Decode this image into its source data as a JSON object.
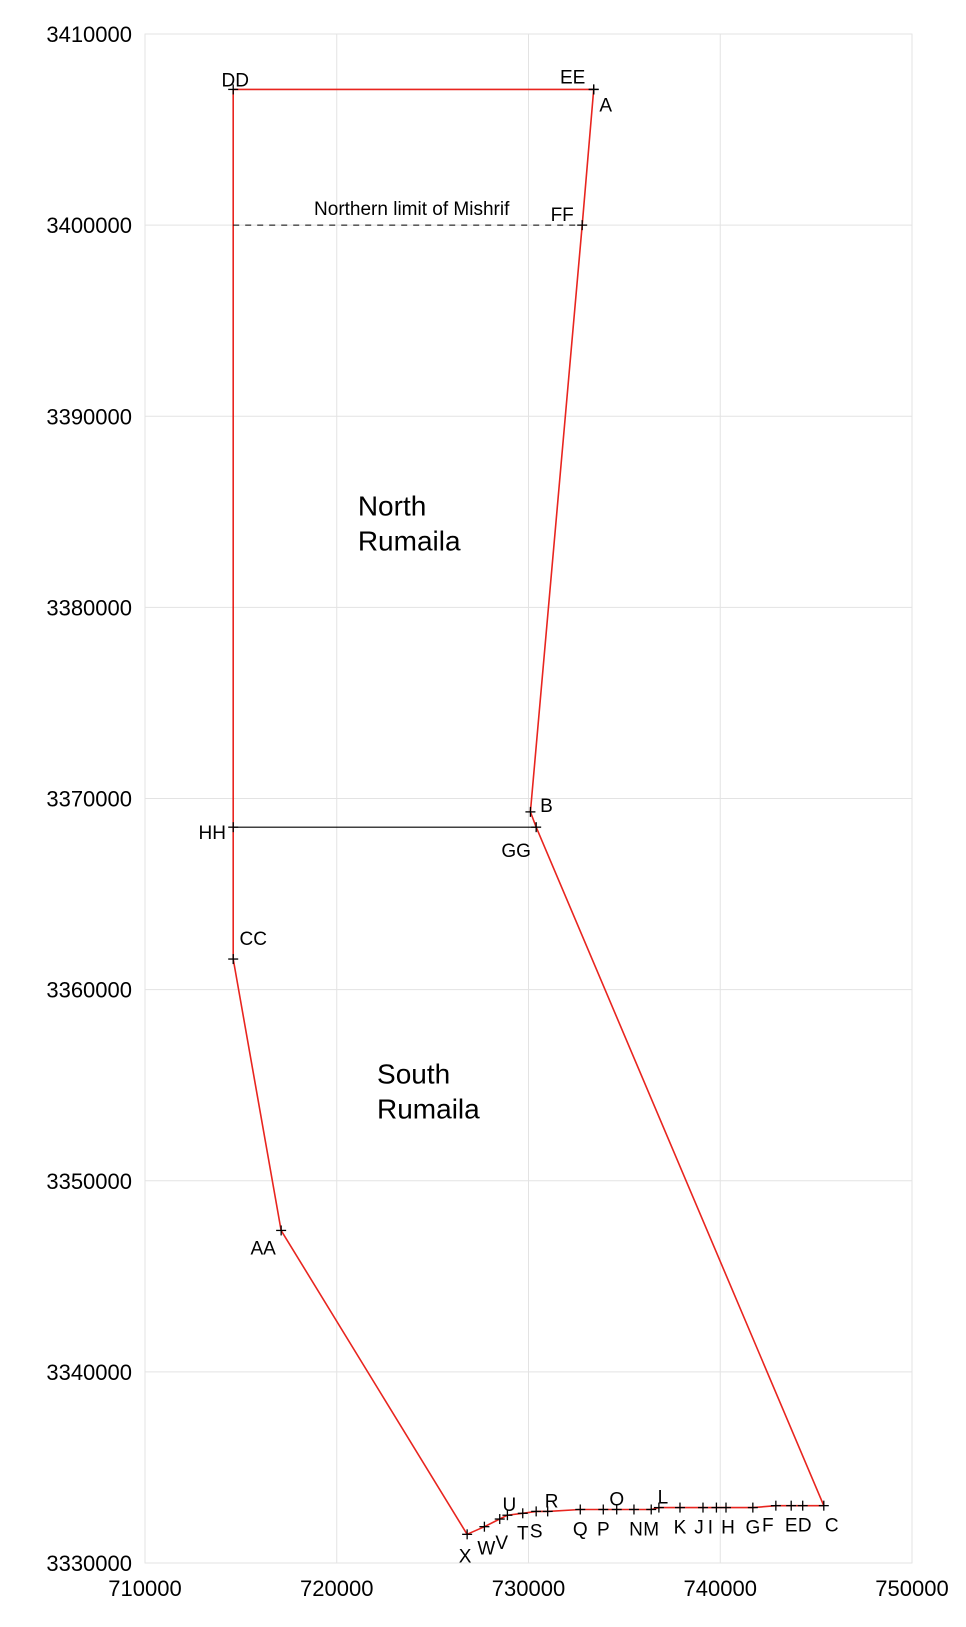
{
  "chart_data": {
    "type": "line",
    "title": "",
    "xlabel": "",
    "ylabel": "",
    "xlim": [
      710000,
      750000
    ],
    "ylim": [
      3330000,
      3410000
    ],
    "grid": true,
    "x_ticks": [
      "710000",
      "720000",
      "730000",
      "740000",
      "750000"
    ],
    "y_ticks": [
      "3330000",
      "3340000",
      "3350000",
      "3360000",
      "3370000",
      "3380000",
      "3390000",
      "3400000",
      "3410000"
    ],
    "boundary_color": "#e8251f",
    "divider_color": "#000000",
    "boundary": [
      {
        "label": "A",
        "x": 733400,
        "y": 3407100
      },
      {
        "label": "FF",
        "x": 732800,
        "y": 3400000
      },
      {
        "label": "B",
        "x": 730100,
        "y": 3369300
      },
      {
        "label": "GG",
        "x": 730400,
        "y": 3368500
      },
      {
        "label": "C",
        "x": 745400,
        "y": 3333000
      },
      {
        "label": "D",
        "x": 744300,
        "y": 3333000
      },
      {
        "label": "E",
        "x": 743700,
        "y": 3333000
      },
      {
        "label": "F",
        "x": 742900,
        "y": 3333000
      },
      {
        "label": "G",
        "x": 741700,
        "y": 3332900
      },
      {
        "label": "H",
        "x": 740300,
        "y": 3332900
      },
      {
        "label": "I",
        "x": 739800,
        "y": 3332900
      },
      {
        "label": "J",
        "x": 739100,
        "y": 3332900
      },
      {
        "label": "K",
        "x": 737900,
        "y": 3332900
      },
      {
        "label": "L",
        "x": 736800,
        "y": 3332900
      },
      {
        "label": "M",
        "x": 736400,
        "y": 3332800
      },
      {
        "label": "N",
        "x": 735500,
        "y": 3332800
      },
      {
        "label": "O",
        "x": 734600,
        "y": 3332800
      },
      {
        "label": "P",
        "x": 733900,
        "y": 3332800
      },
      {
        "label": "Q",
        "x": 732700,
        "y": 3332800
      },
      {
        "label": "R",
        "x": 731000,
        "y": 3332700
      },
      {
        "label": "S",
        "x": 730400,
        "y": 3332700
      },
      {
        "label": "T",
        "x": 729700,
        "y": 3332600
      },
      {
        "label": "U",
        "x": 728900,
        "y": 3332500
      },
      {
        "label": "V",
        "x": 728500,
        "y": 3332300
      },
      {
        "label": "W",
        "x": 727700,
        "y": 3331900
      },
      {
        "label": "X",
        "x": 726800,
        "y": 3331500
      },
      {
        "label": "AA",
        "x": 717100,
        "y": 3347400
      },
      {
        "label": "CC",
        "x": 714600,
        "y": 3361600
      },
      {
        "label": "HH",
        "x": 714600,
        "y": 3368500
      },
      {
        "label": "DD",
        "x": 714600,
        "y": 3407100
      },
      {
        "label": "EE",
        "x": 733400,
        "y": 3407100
      }
    ],
    "divider_line": {
      "from": "HH",
      "to": "GG"
    },
    "mishrif_line": {
      "label": "Northern limit of Mishrif",
      "y": 3400000,
      "x_from": 714600,
      "x_to": 732800
    },
    "regions": [
      {
        "lines": [
          "North",
          "Rumaila"
        ],
        "x": 721100,
        "y": 3384800
      },
      {
        "lines": [
          "South",
          "Rumaila"
        ],
        "x": 722100,
        "y": 3355100
      }
    ]
  }
}
